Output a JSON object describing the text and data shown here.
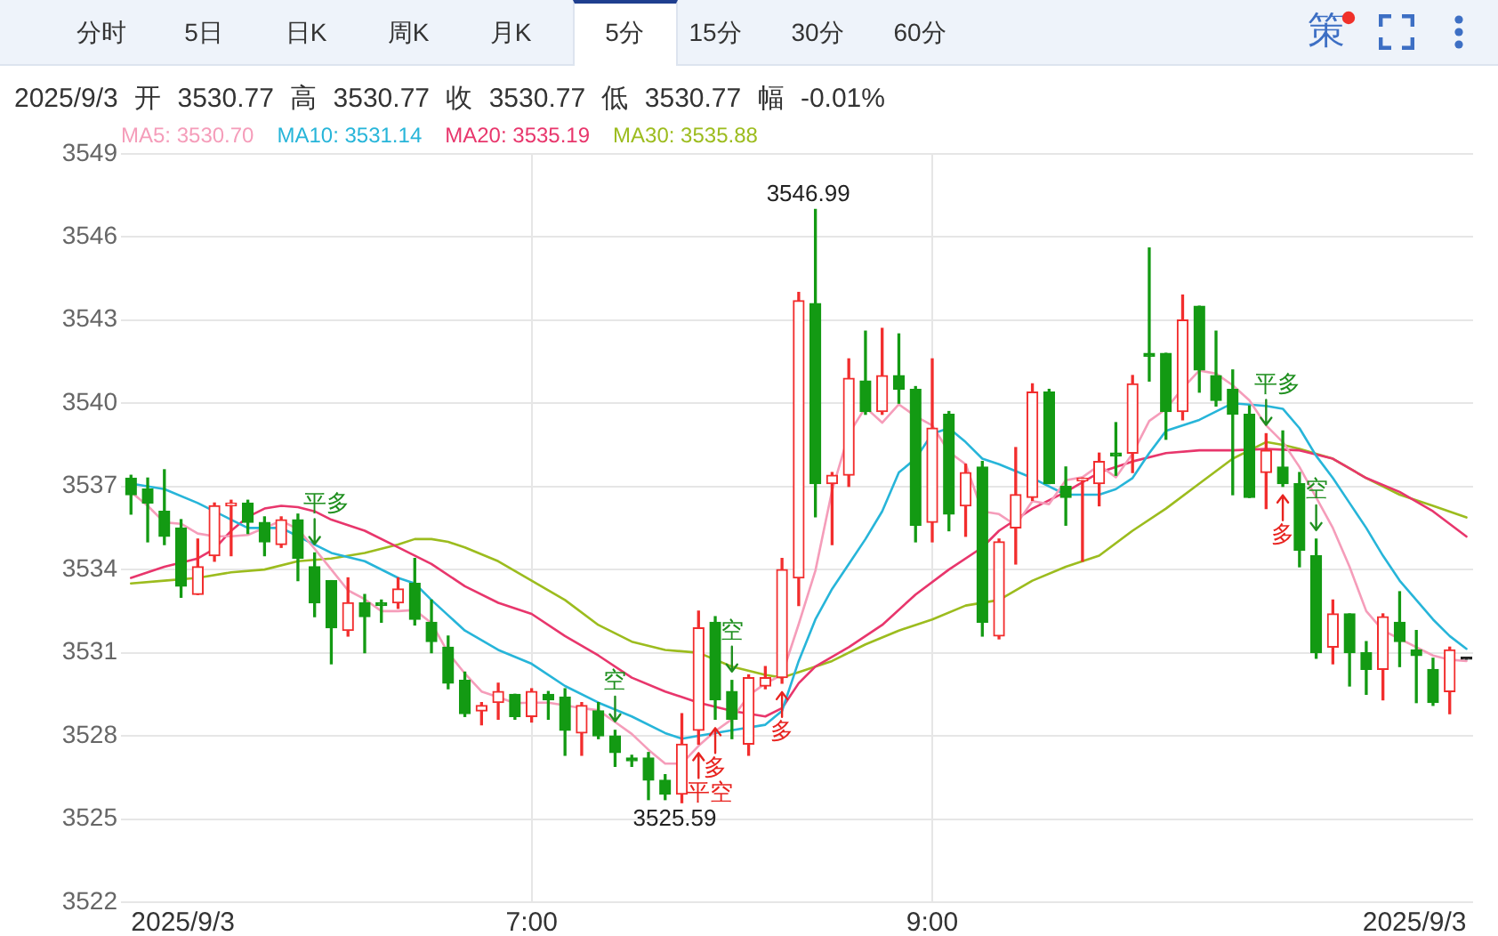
{
  "chart_data": {
    "type": "candlestick",
    "subtitle": "2025/9/3 开 3530.77 高 3530.77 收 3530.77 低 3530.77 幅 -0.01%",
    "x": [
      "2025-09-03T05:00",
      "2025-09-03T05:05",
      "2025-09-03T05:10",
      "2025-09-03T05:15",
      "2025-09-03T05:20",
      "2025-09-03T05:25",
      "2025-09-03T05:30",
      "2025-09-03T05:35",
      "2025-09-03T05:40",
      "2025-09-03T05:45",
      "2025-09-03T05:50",
      "2025-09-03T05:55",
      "2025-09-03T06:00",
      "2025-09-03T06:05",
      "2025-09-03T06:10",
      "2025-09-03T06:15",
      "2025-09-03T06:20",
      "2025-09-03T06:25",
      "2025-09-03T06:30",
      "2025-09-03T06:35",
      "2025-09-03T06:40",
      "2025-09-03T06:45",
      "2025-09-03T06:50",
      "2025-09-03T06:55",
      "2025-09-03T07:00",
      "2025-09-03T07:05",
      "2025-09-03T07:10",
      "2025-09-03T07:15",
      "2025-09-03T07:20",
      "2025-09-03T07:25",
      "2025-09-03T07:30",
      "2025-09-03T07:35",
      "2025-09-03T07:40",
      "2025-09-03T07:45",
      "2025-09-03T07:50",
      "2025-09-03T07:55",
      "2025-09-03T08:00",
      "2025-09-03T08:05",
      "2025-09-03T08:10",
      "2025-09-03T08:15",
      "2025-09-03T08:20",
      "2025-09-03T08:25",
      "2025-09-03T08:30",
      "2025-09-03T08:35",
      "2025-09-03T08:40",
      "2025-09-03T08:45",
      "2025-09-03T08:50",
      "2025-09-03T08:55",
      "2025-09-03T09:00",
      "2025-09-03T09:05",
      "2025-09-03T09:10",
      "2025-09-03T09:15",
      "2025-09-03T09:20",
      "2025-09-03T09:25",
      "2025-09-03T09:30",
      "2025-09-03T09:35",
      "2025-09-03T09:40",
      "2025-09-03T09:45",
      "2025-09-03T09:50",
      "2025-09-03T09:55",
      "2025-09-03T10:00",
      "2025-09-03T10:05",
      "2025-09-03T10:10",
      "2025-09-03T10:15",
      "2025-09-03T10:20",
      "2025-09-03T10:25",
      "2025-09-03T10:30",
      "2025-09-03T10:35",
      "2025-09-03T10:40",
      "2025-09-03T10:45",
      "2025-09-03T10:50",
      "2025-09-03T10:55",
      "2025-09-03T11:00",
      "2025-09-03T11:05",
      "2025-09-03T11:10",
      "2025-09-03T11:15",
      "2025-09-03T11:20",
      "2025-09-03T11:25",
      "2025-09-03T11:30",
      "2025-09-03T11:35",
      "2025-09-03T11:40"
    ],
    "ohlc": [
      [
        3537.3,
        3537.4,
        3536.0,
        3536.7
      ],
      [
        3536.9,
        3537.3,
        3535.0,
        3536.4
      ],
      [
        3536.1,
        3537.6,
        3534.9,
        3535.2
      ],
      [
        3535.5,
        3535.8,
        3533.0,
        3533.4
      ],
      [
        3533.1,
        3535.1,
        3533.1,
        3534.1
      ],
      [
        3534.5,
        3536.4,
        3534.3,
        3536.3
      ],
      [
        3536.3,
        3536.5,
        3534.5,
        3536.4
      ],
      [
        3536.4,
        3536.5,
        3535.3,
        3535.7
      ],
      [
        3535.7,
        3535.9,
        3534.5,
        3535.0
      ],
      [
        3534.9,
        3535.9,
        3534.8,
        3535.8
      ],
      [
        3535.8,
        3536.0,
        3533.6,
        3534.4
      ],
      [
        3534.1,
        3534.6,
        3532.3,
        3532.8
      ],
      [
        3533.6,
        3533.6,
        3530.6,
        3531.9
      ],
      [
        3531.8,
        3533.7,
        3531.6,
        3532.8
      ],
      [
        3532.8,
        3533.1,
        3531.0,
        3532.3
      ],
      [
        3532.8,
        3532.9,
        3532.1,
        3532.7
      ],
      [
        3532.8,
        3533.7,
        3532.6,
        3533.3
      ],
      [
        3533.5,
        3534.4,
        3532.0,
        3532.2
      ],
      [
        3532.1,
        3532.9,
        3531.0,
        3531.4
      ],
      [
        3531.2,
        3531.6,
        3529.7,
        3529.9
      ],
      [
        3530.0,
        3530.3,
        3528.7,
        3528.8
      ],
      [
        3528.9,
        3529.2,
        3528.4,
        3529.1
      ],
      [
        3529.2,
        3529.9,
        3528.6,
        3529.6
      ],
      [
        3529.5,
        3529.5,
        3528.6,
        3528.7
      ],
      [
        3528.7,
        3529.7,
        3528.5,
        3529.6
      ],
      [
        3529.5,
        3529.6,
        3528.6,
        3529.3
      ],
      [
        3529.4,
        3529.7,
        3527.3,
        3528.2
      ],
      [
        3528.1,
        3529.2,
        3527.3,
        3529.1
      ],
      [
        3528.9,
        3529.2,
        3527.9,
        3528.0
      ],
      [
        3528.0,
        3528.2,
        3526.9,
        3527.4
      ],
      [
        3527.2,
        3527.3,
        3526.9,
        3527.1
      ],
      [
        3527.2,
        3527.4,
        3525.7,
        3526.4
      ],
      [
        3526.4,
        3526.6,
        3525.7,
        3525.9
      ],
      [
        3525.9,
        3528.8,
        3525.59,
        3527.7
      ],
      [
        3528.2,
        3532.5,
        3527.7,
        3531.9
      ],
      [
        3532.1,
        3532.3,
        3528.6,
        3529.3
      ],
      [
        3529.6,
        3530.0,
        3527.9,
        3528.6
      ],
      [
        3527.7,
        3530.2,
        3527.3,
        3530.1
      ],
      [
        3529.8,
        3530.5,
        3529.7,
        3530.1
      ],
      [
        3530.1,
        3534.4,
        3529.9,
        3534.0
      ],
      [
        3533.7,
        3544.0,
        3532.7,
        3543.7
      ],
      [
        3543.6,
        3546.99,
        3535.9,
        3537.1
      ],
      [
        3537.1,
        3537.5,
        3534.9,
        3537.4
      ],
      [
        3537.4,
        3541.6,
        3537.0,
        3540.9
      ],
      [
        3540.8,
        3542.6,
        3539.6,
        3539.7
      ],
      [
        3539.7,
        3542.7,
        3539.6,
        3541.0
      ],
      [
        3541.0,
        3542.5,
        3540.0,
        3540.5
      ],
      [
        3540.5,
        3540.6,
        3535.0,
        3535.6
      ],
      [
        3535.7,
        3541.6,
        3535.0,
        3539.1
      ],
      [
        3539.6,
        3539.7,
        3535.4,
        3536.0
      ],
      [
        3536.3,
        3537.8,
        3535.2,
        3537.5
      ],
      [
        3537.7,
        3537.9,
        3531.6,
        3532.1
      ],
      [
        3531.6,
        3535.1,
        3531.5,
        3535.0
      ],
      [
        3535.5,
        3538.4,
        3534.2,
        3536.7
      ],
      [
        3536.6,
        3540.7,
        3536.5,
        3540.4
      ],
      [
        3540.4,
        3540.5,
        3537.1,
        3537.1
      ],
      [
        3537.0,
        3537.7,
        3535.6,
        3536.6
      ],
      [
        3537.2,
        3537.3,
        3534.3,
        3537.3
      ],
      [
        3537.1,
        3538.2,
        3536.3,
        3537.9
      ],
      [
        3538.2,
        3539.3,
        3537.4,
        3538.1
      ],
      [
        3538.2,
        3541.0,
        3537.5,
        3540.7
      ],
      [
        3541.8,
        3545.6,
        3540.8,
        3541.7
      ],
      [
        3541.8,
        3541.8,
        3538.7,
        3539.7
      ],
      [
        3539.7,
        3543.9,
        3539.4,
        3543.0
      ],
      [
        3543.5,
        3543.5,
        3540.4,
        3541.2
      ],
      [
        3541.0,
        3542.6,
        3539.9,
        3540.1
      ],
      [
        3540.5,
        3541.2,
        3536.7,
        3539.6
      ],
      [
        3539.6,
        3539.9,
        3536.6,
        3536.6
      ],
      [
        3537.5,
        3538.9,
        3536.2,
        3538.3
      ],
      [
        3537.7,
        3539.0,
        3537.0,
        3537.1
      ],
      [
        3537.1,
        3537.5,
        3534.1,
        3534.7
      ],
      [
        3534.5,
        3535.1,
        3530.8,
        3531.0
      ],
      [
        3531.2,
        3532.9,
        3530.6,
        3532.4
      ],
      [
        3532.4,
        3532.4,
        3529.8,
        3531.0
      ],
      [
        3531.0,
        3531.4,
        3529.5,
        3530.4
      ],
      [
        3530.4,
        3532.4,
        3529.3,
        3532.3
      ],
      [
        3532.1,
        3533.2,
        3530.5,
        3531.4
      ],
      [
        3531.1,
        3531.8,
        3529.2,
        3530.9
      ],
      [
        3530.4,
        3530.8,
        3529.1,
        3529.2
      ],
      [
        3529.6,
        3531.2,
        3528.8,
        3531.1
      ],
      [
        3530.77,
        3530.77,
        3530.77,
        3530.77
      ]
    ],
    "colors": [
      "#139a13",
      "#139a13",
      "#139a13",
      "#139a13",
      "#f22d2d",
      "#f22d2d",
      "#f22d2d",
      "#139a13",
      "#139a13",
      "#f22d2d",
      "#139a13",
      "#139a13",
      "#139a13",
      "#f22d2d",
      "#139a13",
      "#139a13",
      "#f22d2d",
      "#139a13",
      "#139a13",
      "#139a13",
      "#139a13",
      "#f22d2d",
      "#f22d2d",
      "#139a13",
      "#f22d2d",
      "#139a13",
      "#139a13",
      "#f22d2d",
      "#139a13",
      "#139a13",
      "#139a13",
      "#139a13",
      "#139a13",
      "#f22d2d",
      "#f22d2d",
      "#139a13",
      "#139a13",
      "#f22d2d",
      "#f22d2d",
      "#f22d2d",
      "#f22d2d",
      "#139a13",
      "#f22d2d",
      "#f22d2d",
      "#139a13",
      "#f22d2d",
      "#139a13",
      "#139a13",
      "#f22d2d",
      "#139a13",
      "#f22d2d",
      "#139a13",
      "#f22d2d",
      "#f22d2d",
      "#f22d2d",
      "#139a13",
      "#139a13",
      "#f22d2d",
      "#f22d2d",
      "#139a13",
      "#f22d2d",
      "#139a13",
      "#139a13",
      "#f22d2d",
      "#139a13",
      "#139a13",
      "#139a13",
      "#139a13",
      "#f22d2d",
      "#139a13",
      "#139a13",
      "#139a13",
      "#f22d2d",
      "#139a13",
      "#139a13",
      "#f22d2d",
      "#139a13",
      "#139a13",
      "#139a13",
      "#f22d2d",
      "#222222"
    ],
    "series": [
      {
        "type": "line",
        "name": "MA5: 3530.70",
        "color": "#f59dba",
        "values": [
          3536.8,
          3536.3,
          3535.7,
          3535.65,
          3535.3,
          3535.2,
          3535.2,
          3535.25,
          3535.5,
          3535.76,
          3535.46,
          3534.75,
          3534.0,
          3533.25,
          3532.93,
          3532.5,
          3532.5,
          3532.54,
          3532.07,
          3531.0,
          3530.25,
          3529.6,
          3529.4,
          3529.18,
          3529.2,
          3529.2,
          3529.1,
          3529.0,
          3528.92,
          3528.5,
          3528.07,
          3527.5,
          3527.0,
          3527.0,
          3527.64,
          3528.17,
          3528.6,
          3529.46,
          3529.89,
          3530.2,
          3532.03,
          3533.96,
          3536.85,
          3538.9,
          3539.85,
          3539.3,
          3539.96,
          3539.53,
          3539.2,
          3538.24,
          3537.8,
          3536.1,
          3536.0,
          3535.6,
          3536.47,
          3536.36,
          3537.22,
          3537.33,
          3537.76,
          3537.33,
          3538.18,
          3539.36,
          3539.79,
          3540.54,
          3541.18,
          3541.07,
          3540.65,
          3540.1,
          3539.2,
          3538.6,
          3537.7,
          3536.6,
          3535.5,
          3534.1,
          3532.5,
          3531.8,
          3531.5,
          3531.2,
          3530.9,
          3530.75,
          3530.7
        ]
      },
      {
        "type": "line",
        "name": "MA10: 3531.14",
        "color": "#27b5d9",
        "x": [
          "2025-09-03T05:00",
          "2025-09-03T05:10",
          "2025-09-03T05:20",
          "2025-09-03T05:30",
          "2025-09-03T05:35",
          "2025-09-03T05:45",
          "2025-09-03T05:50",
          "2025-09-03T06:00",
          "2025-09-03T06:10",
          "2025-09-03T06:20",
          "2025-09-03T06:25",
          "2025-09-03T06:30",
          "2025-09-03T06:40",
          "2025-09-03T06:50",
          "2025-09-03T07:00",
          "2025-09-03T07:10",
          "2025-09-03T07:20",
          "2025-09-03T07:30",
          "2025-09-03T07:40",
          "2025-09-03T07:45",
          "2025-09-03T07:50",
          "2025-09-03T08:00",
          "2025-09-03T08:10",
          "2025-09-03T08:15",
          "2025-09-03T08:20",
          "2025-09-03T08:25",
          "2025-09-03T08:30",
          "2025-09-03T08:35",
          "2025-09-03T08:40",
          "2025-09-03T08:45",
          "2025-09-03T08:50",
          "2025-09-03T08:55",
          "2025-09-03T09:00",
          "2025-09-03T09:05",
          "2025-09-03T09:10",
          "2025-09-03T09:15",
          "2025-09-03T09:20",
          "2025-09-03T09:30",
          "2025-09-03T09:40",
          "2025-09-03T09:50",
          "2025-09-03T09:55",
          "2025-09-03T10:00",
          "2025-09-03T10:05",
          "2025-09-03T10:10",
          "2025-09-03T10:20",
          "2025-09-03T10:30",
          "2025-09-03T10:40",
          "2025-09-03T10:45",
          "2025-09-03T10:50",
          "2025-09-03T10:55",
          "2025-09-03T11:00",
          "2025-09-03T11:05",
          "2025-09-03T11:10",
          "2025-09-03T11:15",
          "2025-09-03T11:20",
          "2025-09-03T11:25",
          "2025-09-03T11:30",
          "2025-09-03T11:35",
          "2025-09-03T11:40"
        ],
        "values": [
          3537.1,
          3536.9,
          3536.4,
          3535.8,
          3535.5,
          3535.5,
          3535.2,
          3534.6,
          3534.3,
          3533.7,
          3533.5,
          3532.9,
          3531.8,
          3531.1,
          3530.6,
          3529.8,
          3529.2,
          3528.7,
          3528.1,
          3527.9,
          3528.0,
          3528.2,
          3528.4,
          3528.9,
          3530.7,
          3532.2,
          3533.3,
          3534.2,
          3535.1,
          3536.1,
          3537.5,
          3538.0,
          3538.9,
          3539.1,
          3538.6,
          3538.0,
          3537.8,
          3537.3,
          3536.7,
          3536.7,
          3536.9,
          3537.3,
          3538.2,
          3539.0,
          3539.4,
          3540.0,
          3539.9,
          3539.8,
          3539.1,
          3538.1,
          3537.3,
          3536.4,
          3535.5,
          3534.5,
          3533.6,
          3532.9,
          3532.2,
          3531.6,
          3531.14
        ]
      },
      {
        "type": "line",
        "name": "MA20: 3535.19",
        "color": "#e8366c",
        "x": [
          "2025-09-03T05:00",
          "2025-09-03T05:10",
          "2025-09-03T05:20",
          "2025-09-03T05:25",
          "2025-09-03T05:30",
          "2025-09-03T05:35",
          "2025-09-03T05:40",
          "2025-09-03T05:45",
          "2025-09-03T05:50",
          "2025-09-03T05:55",
          "2025-09-03T06:00",
          "2025-09-03T06:10",
          "2025-09-03T06:20",
          "2025-09-03T06:30",
          "2025-09-03T06:40",
          "2025-09-03T06:50",
          "2025-09-03T07:00",
          "2025-09-03T07:10",
          "2025-09-03T07:20",
          "2025-09-03T07:30",
          "2025-09-03T07:40",
          "2025-09-03T07:50",
          "2025-09-03T08:00",
          "2025-09-03T08:10",
          "2025-09-03T08:15",
          "2025-09-03T08:20",
          "2025-09-03T08:25",
          "2025-09-03T08:35",
          "2025-09-03T08:45",
          "2025-09-03T08:55",
          "2025-09-03T09:05",
          "2025-09-03T09:15",
          "2025-09-03T09:20",
          "2025-09-03T09:30",
          "2025-09-03T09:40",
          "2025-09-03T09:50",
          "2025-09-03T10:00",
          "2025-09-03T10:10",
          "2025-09-03T10:20",
          "2025-09-03T10:30",
          "2025-09-03T10:40",
          "2025-09-03T10:50",
          "2025-09-03T11:00",
          "2025-09-03T11:10",
          "2025-09-03T11:20",
          "2025-09-03T11:30",
          "2025-09-03T11:40"
        ],
        "values": [
          3533.7,
          3534.1,
          3534.4,
          3534.75,
          3535.4,
          3535.9,
          3536.2,
          3536.3,
          3536.25,
          3536.1,
          3535.8,
          3535.4,
          3534.8,
          3534.2,
          3533.4,
          3532.8,
          3532.4,
          3531.6,
          3530.9,
          3530.1,
          3529.6,
          3529.2,
          3528.9,
          3528.7,
          3529.0,
          3529.9,
          3530.5,
          3531.2,
          3532.0,
          3533.1,
          3534.0,
          3534.8,
          3535.4,
          3536.2,
          3536.8,
          3537.5,
          3537.9,
          3538.2,
          3538.3,
          3538.3,
          3538.35,
          3538.3,
          3538.0,
          3537.3,
          3536.8,
          3536.1,
          3535.19
        ]
      },
      {
        "type": "line",
        "name": "MA30: 3535.88",
        "color": "#9cbc1e",
        "x": [
          "2025-09-03T05:00",
          "2025-09-03T05:10",
          "2025-09-03T05:20",
          "2025-09-03T05:30",
          "2025-09-03T05:40",
          "2025-09-03T05:50",
          "2025-09-03T06:00",
          "2025-09-03T06:10",
          "2025-09-03T06:20",
          "2025-09-03T06:25",
          "2025-09-03T06:30",
          "2025-09-03T06:35",
          "2025-09-03T06:40",
          "2025-09-03T06:50",
          "2025-09-03T07:00",
          "2025-09-03T07:10",
          "2025-09-03T07:20",
          "2025-09-03T07:30",
          "2025-09-03T07:40",
          "2025-09-03T07:50",
          "2025-09-03T08:00",
          "2025-09-03T08:10",
          "2025-09-03T08:15",
          "2025-09-03T08:20",
          "2025-09-03T08:30",
          "2025-09-03T08:40",
          "2025-09-03T08:50",
          "2025-09-03T09:00",
          "2025-09-03T09:10",
          "2025-09-03T09:20",
          "2025-09-03T09:30",
          "2025-09-03T09:40",
          "2025-09-03T09:50",
          "2025-09-03T10:00",
          "2025-09-03T10:10",
          "2025-09-03T10:20",
          "2025-09-03T10:30",
          "2025-09-03T10:40",
          "2025-09-03T10:45",
          "2025-09-03T10:50",
          "2025-09-03T11:00",
          "2025-09-03T11:10",
          "2025-09-03T11:20",
          "2025-09-03T11:30",
          "2025-09-03T11:40"
        ],
        "values": [
          3533.5,
          3533.6,
          3533.7,
          3533.9,
          3534.0,
          3534.3,
          3534.4,
          3534.6,
          3534.9,
          3535.1,
          3535.1,
          3535.0,
          3534.8,
          3534.3,
          3533.6,
          3532.9,
          3532.0,
          3531.4,
          3531.1,
          3531.0,
          3530.5,
          3530.2,
          3530.1,
          3530.3,
          3530.7,
          3531.3,
          3531.8,
          3532.2,
          3532.7,
          3532.9,
          3533.6,
          3534.1,
          3534.5,
          3535.4,
          3536.2,
          3537.1,
          3538.0,
          3538.6,
          3538.5,
          3538.35,
          3538.0,
          3537.3,
          3536.7,
          3536.3,
          3535.88
        ]
      }
    ],
    "xlim": [
      "2025-09-03T04:57",
      "2025-09-03T11:42"
    ],
    "ylim": [
      3522,
      3549
    ],
    "xticks": [
      {
        "value": "2025-09-03T05:00",
        "label": "2025/9/3"
      },
      {
        "value": "2025-09-03T07:00",
        "label": "7:00"
      },
      {
        "value": "2025-09-03T09:00",
        "label": "9:00"
      },
      {
        "value": "2025-09-03T11:40",
        "label": "2025/9/3"
      }
    ],
    "yticks": [
      3522,
      3525,
      3528,
      3531,
      3534,
      3537,
      3540,
      3543,
      3546,
      3549
    ],
    "grid": true,
    "legend": "top left",
    "marker": "none",
    "annotations": [
      "分时",
      "5日",
      "日K",
      "周K",
      "月K",
      "5分",
      "15分",
      "30分",
      "60分",
      "策",
      {
        "text": "3546.99",
        "x": "2025-09-03T08:25",
        "y": 3546.99
      },
      {
        "text": "3525.59",
        "x": "2025-09-03T07:45",
        "y": 3525.59
      },
      {
        "text": "平多",
        "x": "2025-09-03T05:55",
        "y": 3534.6
      },
      {
        "text": "空",
        "x": "2025-09-03T07:25",
        "y": 3528.2
      },
      {
        "text": "平空",
        "x": "2025-09-03T07:50",
        "y": 3527.7
      },
      {
        "text": "多",
        "x": "2025-09-03T07:55",
        "y": 3528.6
      },
      {
        "text": "空",
        "x": "2025-09-03T08:00",
        "y": 3530.0
      },
      {
        "text": "多",
        "x": "2025-09-03T08:15",
        "y": 3529.9
      },
      {
        "text": "平多",
        "x": "2025-09-03T10:40",
        "y": 3538.9
      },
      {
        "text": "多",
        "x": "2025-09-03T10:45",
        "y": 3537.0
      },
      {
        "text": "空",
        "x": "2025-09-03T10:55",
        "y": 3535.1
      }
    ]
  }
}
